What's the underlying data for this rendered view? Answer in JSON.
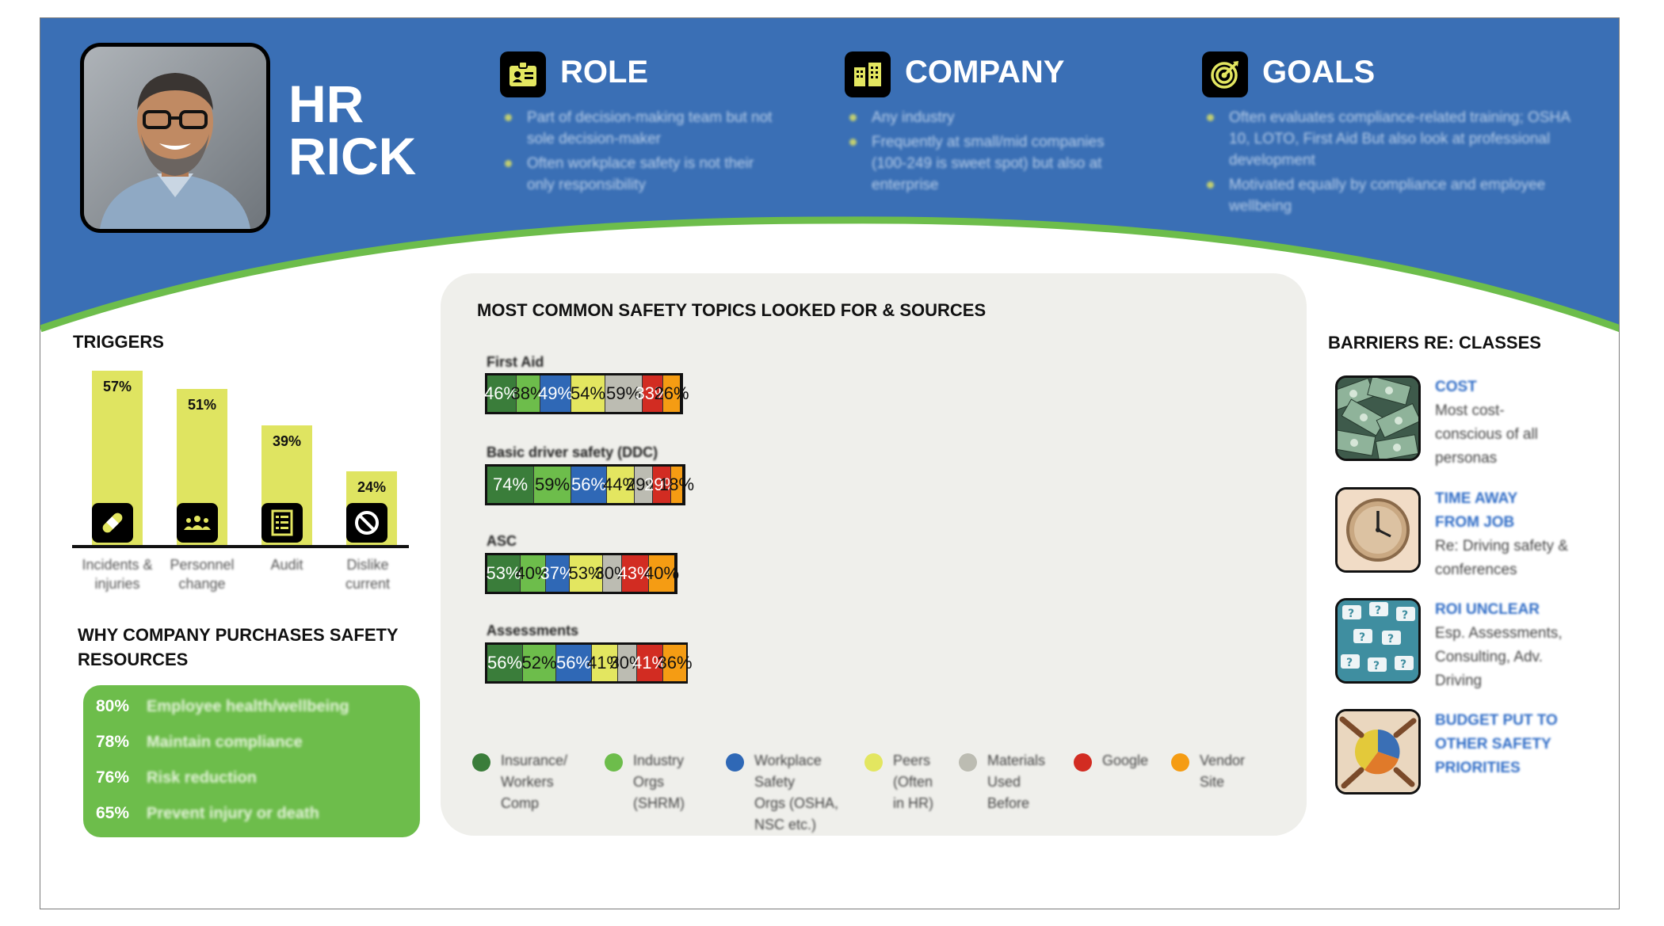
{
  "persona": {
    "name_line1": "HR",
    "name_line2": "RICK"
  },
  "role": {
    "title": "ROLE",
    "icon": "id-badge-icon",
    "bullets": [
      "Part of decision-making team but not sole decision-maker",
      "Often workplace safety is not their only responsibility"
    ]
  },
  "company": {
    "title": "COMPANY",
    "icon": "buildings-icon",
    "bullets": [
      "Any industry",
      "Frequently at small/mid companies (100-249 is sweet spot) but also at enterprise"
    ]
  },
  "goals": {
    "title": "GOALS",
    "icon": "target-icon",
    "bullets": [
      "Often evaluates compliance-related training; OSHA 10, LOTO, First Aid But also look at professional development",
      "Motivated equally by compliance and employee wellbeing"
    ]
  },
  "triggers": {
    "title": "TRIGGERS",
    "items": [
      {
        "value": 57,
        "label": "57%",
        "category": "Incidents & injuries",
        "icon": "bandage-icon"
      },
      {
        "value": 51,
        "label": "51%",
        "category": "Personnel change",
        "icon": "people-icon"
      },
      {
        "value": 39,
        "label": "39%",
        "category": "Audit",
        "icon": "checklist-icon"
      },
      {
        "value": 24,
        "label": "24%",
        "category": "Dislike current",
        "icon": "prohibited-icon"
      }
    ]
  },
  "why": {
    "title": "WHY COMPANY PURCHASES SAFETY RESOURCES",
    "items": [
      {
        "pct": "80%",
        "text": "Employee health/wellbeing"
      },
      {
        "pct": "78%",
        "text": "Maintain compliance"
      },
      {
        "pct": "76%",
        "text": "Risk reduction"
      },
      {
        "pct": "65%",
        "text": "Prevent injury or death"
      }
    ]
  },
  "topics": {
    "title": "MOST COMMON SAFETY TOPICS LOOKED FOR & SOURCES",
    "colors": [
      "#3a7d3a",
      "#6dbd4b",
      "#2f68b6",
      "#e3e660",
      "#bcbcb2",
      "#d22c22",
      "#f59c13"
    ],
    "text_colors": [
      "#ffffff",
      "#111111",
      "#ffffff",
      "#111111",
      "#111111",
      "#ffffff",
      "#111111"
    ],
    "rows": [
      {
        "label": "First Aid",
        "values": [
          46,
          38,
          49,
          54,
          59,
          33,
          26
        ]
      },
      {
        "label": "Basic driver safety (DDC)",
        "values": [
          74,
          59,
          56,
          44,
          29,
          29,
          18
        ]
      },
      {
        "label": "ASC",
        "values": [
          53,
          40,
          37,
          53,
          30,
          43,
          40
        ]
      },
      {
        "label": "Assessments",
        "values": [
          56,
          52,
          56,
          41,
          30,
          41,
          36
        ]
      }
    ],
    "legend": [
      "Insurance/\nWorkers\nComp",
      "Industry\nOrgs\n(SHRM)",
      "Workplace\nSafety\nOrgs (OSHA,\nNSC etc.)",
      "Peers\n(Often\nin HR)",
      "Materials\nUsed\nBefore",
      "Google",
      "Vendor\nSite"
    ]
  },
  "barriers": {
    "title": "BARRIERS RE: CLASSES",
    "items": [
      {
        "title": "COST",
        "text": "Most cost-\nconscious of all\npersonas",
        "icon": "money-icon"
      },
      {
        "title": "TIME AWAY\nFROM JOB",
        "text": "Re: Driving safety &\nconferences",
        "icon": "clock-icon"
      },
      {
        "title": "ROI UNCLEAR",
        "text": "Esp. Assessments,\nConsulting, Adv.\nDriving",
        "icon": "question-marks-icon"
      },
      {
        "title": "BUDGET PUT TO\nOTHER SAFETY\nPRIORITIES",
        "text": "",
        "icon": "pie-chart-hands-icon"
      }
    ]
  }
}
